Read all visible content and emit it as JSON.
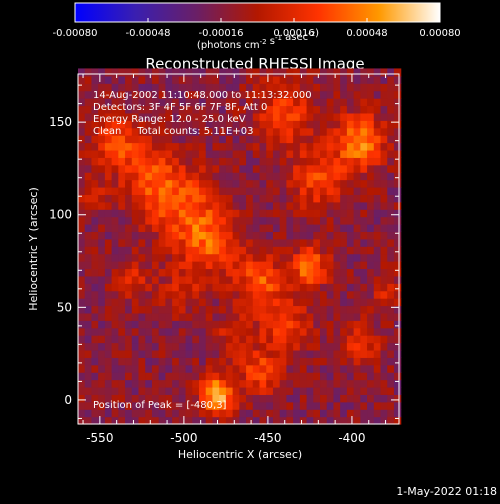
{
  "chart_data": {
    "type": "heatmap",
    "title": "Reconstructed RHESSI Image",
    "xlabel": "Heliocentric X (arcsec)",
    "ylabel": "Heliocentric Y (arcsec)",
    "xlim": [
      -563,
      -372
    ],
    "ylim": [
      -13,
      176
    ],
    "x_ticks": [
      "-550",
      "-500",
      "-450",
      "-400"
    ],
    "x_tick_values": [
      -550,
      -500,
      -450,
      -400
    ],
    "y_ticks": [
      "0",
      "50",
      "100",
      "150"
    ],
    "y_tick_values": [
      0,
      50,
      100,
      150
    ],
    "colorbar": {
      "ticks": [
        "-0.00080",
        "-0.00048",
        "-0.00016",
        "0.00016",
        "0.00048",
        "0.00080"
      ],
      "tick_values": [
        -0.0008,
        -0.00048,
        -0.00016,
        0.00016,
        0.00048,
        0.0008
      ],
      "range": [
        -0.0008,
        0.0008
      ],
      "units_html": "(photons cm<sup>-2</sup> s<sup>-1</sup> asec<sup>-2</sup>)",
      "stops": [
        "#0000ff",
        "#3a1fb0",
        "#6a1f66",
        "#b31800",
        "#ff3300",
        "#ff9900",
        "#ffffff"
      ]
    },
    "annotations": [
      "14-Aug-2002 11:10:48.000 to 11:13:32.000",
      "Detectors: 3F 4F 5F 6F 7F 8F, Att 0",
      "Energy Range: 12.0 - 25.0 keV",
      "Clean     Total counts: 5.11E+03"
    ],
    "peak_text": "Position of Peak = [-480,3]",
    "peak": [
      -480,
      3
    ],
    "timestamp": "1-May-2022 01:18",
    "grid": false,
    "sources": [
      {
        "x": -480,
        "y": 3,
        "sigma": 7,
        "amp": 1.0
      },
      {
        "x": -540,
        "y": 140,
        "sigma": 10,
        "amp": 0.55
      },
      {
        "x": -520,
        "y": 120,
        "sigma": 12,
        "amp": 0.5
      },
      {
        "x": -500,
        "y": 105,
        "sigma": 14,
        "amp": 0.55
      },
      {
        "x": -485,
        "y": 85,
        "sigma": 12,
        "amp": 0.55
      },
      {
        "x": -455,
        "y": 65,
        "sigma": 10,
        "amp": 0.6
      },
      {
        "x": -425,
        "y": 72,
        "sigma": 7,
        "amp": 0.8
      },
      {
        "x": -440,
        "y": 40,
        "sigma": 10,
        "amp": 0.5
      },
      {
        "x": -455,
        "y": 15,
        "sigma": 8,
        "amp": 0.55
      },
      {
        "x": -395,
        "y": 140,
        "sigma": 10,
        "amp": 0.8
      },
      {
        "x": -420,
        "y": 120,
        "sigma": 12,
        "amp": 0.5
      },
      {
        "x": -440,
        "y": 155,
        "sigma": 12,
        "amp": 0.5
      },
      {
        "x": -395,
        "y": 30,
        "sigma": 8,
        "amp": 0.45
      },
      {
        "x": -530,
        "y": 65,
        "sigma": 8,
        "amp": 0.35
      },
      {
        "x": -555,
        "y": 110,
        "sigma": 6,
        "amp": 0.3
      },
      {
        "x": -470,
        "y": 35,
        "sigma": 8,
        "amp": 0.35
      },
      {
        "x": -500,
        "y": 60,
        "sigma": 9,
        "amp": 0.3
      },
      {
        "x": -380,
        "y": 60,
        "sigma": 6,
        "amp": 0.3
      }
    ]
  }
}
